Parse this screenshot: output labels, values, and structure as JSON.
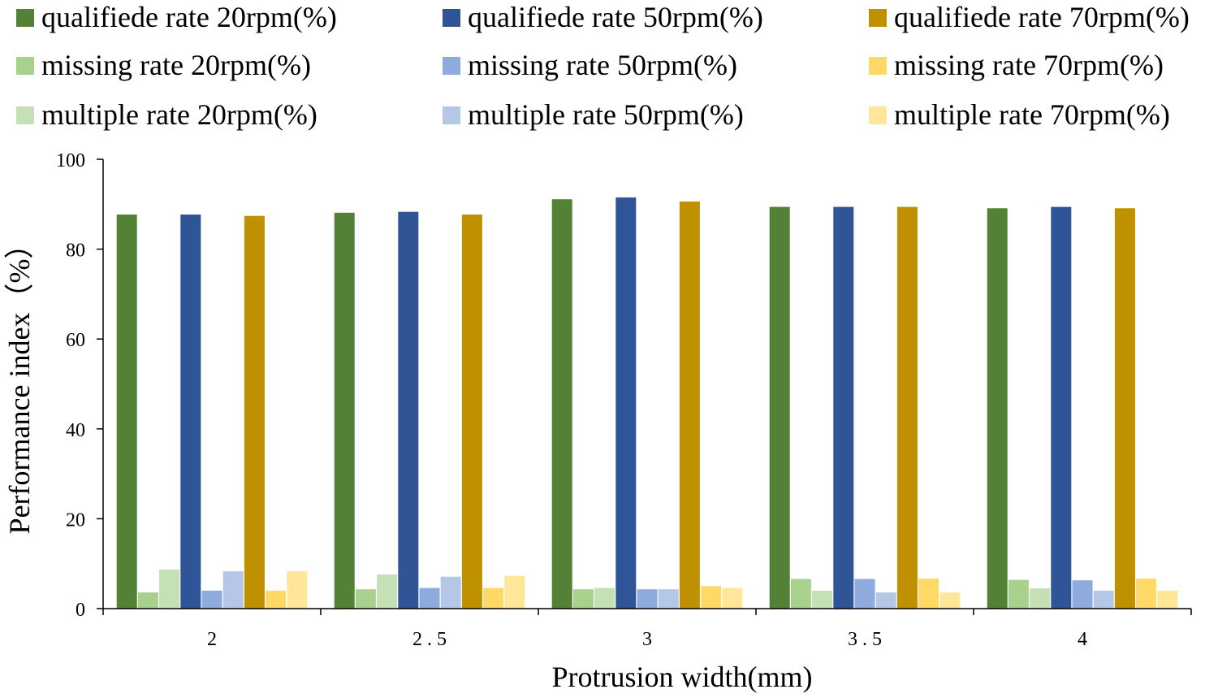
{
  "chart_data": {
    "type": "bar",
    "categories": [
      "2",
      "2.5",
      "3",
      "3.5",
      "4"
    ],
    "tick_display": [
      "2",
      "2 . 5",
      "3",
      "3 . 5",
      "4"
    ],
    "xlabel": "Protrusion width(mm)",
    "ylabel": "Performance index（%）",
    "ylim": [
      0,
      100
    ],
    "yticks": [
      "0",
      "20",
      "40",
      "60",
      "80",
      "100"
    ],
    "legend_position": "top",
    "grid": false,
    "series": [
      {
        "name": "qualifiede rate 20rpm(%)",
        "color": "#538135",
        "values": [
          87.7,
          88.1,
          91.1,
          89.4,
          89.1
        ]
      },
      {
        "name": "missing rate 20rpm(%)",
        "color": "#a9d18e",
        "values": [
          3.6,
          4.3,
          4.3,
          6.6,
          6.4
        ]
      },
      {
        "name": "multiple rate 20rpm(%)",
        "color": "#c5e0b4",
        "values": [
          8.7,
          7.6,
          4.6,
          4.0,
          4.5
        ]
      },
      {
        "name": "qualifiede rate 50rpm(%)",
        "color": "#2f5597",
        "values": [
          87.7,
          88.3,
          91.5,
          89.4,
          89.4
        ]
      },
      {
        "name": "missing rate 50rpm(%)",
        "color": "#8faadc",
        "values": [
          4.0,
          4.6,
          4.3,
          6.6,
          6.3
        ]
      },
      {
        "name": "multiple rate 50rpm(%)",
        "color": "#b4c7e7",
        "values": [
          8.3,
          7.1,
          4.3,
          3.6,
          4.0
        ]
      },
      {
        "name": "qualifiede rate 70rpm(%)",
        "color": "#bf9000",
        "values": [
          87.4,
          87.7,
          90.6,
          89.4,
          89.1
        ]
      },
      {
        "name": "missing rate 70rpm(%)",
        "color": "#ffd966",
        "values": [
          4.0,
          4.6,
          5.0,
          6.7,
          6.7
        ]
      },
      {
        "name": "multiple rate 70rpm(%)",
        "color": "#ffe699",
        "values": [
          8.3,
          7.3,
          4.6,
          3.6,
          4.0
        ]
      }
    ]
  }
}
